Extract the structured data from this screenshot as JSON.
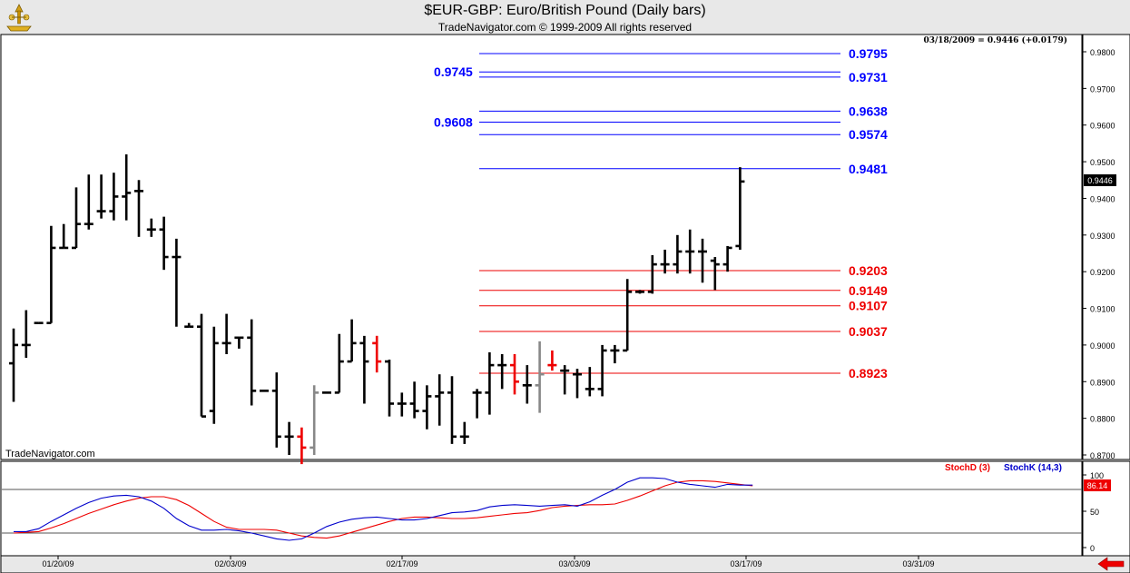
{
  "title": "$EUR-GBP:  Euro/British Pound  (Daily bars)",
  "copyright": "TradeNavigator.com © 1999-2009 All rights reserved",
  "status_line": "03/18/2009 = 0.9446 (+0.0179)",
  "watermark": "TradeNavigator.com",
  "last_price_label": "0.9446",
  "stoch_value_label": "86.14",
  "colors": {
    "up_levels": "#0000ff",
    "down_levels": "#ee0000",
    "bars": "#000000",
    "stochD": "#ee0000",
    "stochK": "#0000cc"
  },
  "chart_data": [
    {
      "type": "ohlc",
      "title": "$EUR-GBP:  Euro/British Pound  (Daily bars)",
      "ylim": [
        0.8675,
        0.9815
      ],
      "y_ticks": [
        "0.9800",
        "0.9700",
        "0.9600",
        "0.9500",
        "0.9400",
        "0.9300",
        "0.9200",
        "0.9100",
        "0.9000",
        "0.8900",
        "0.8800",
        "0.8700"
      ],
      "x_ticks": [
        "01/20/09",
        "02/03/09",
        "02/17/09",
        "03/03/09",
        "03/17/09",
        "03/31/09"
      ],
      "bars": [
        {
          "h": 0.9045,
          "l": 0.8845,
          "o": 0.895,
          "c": 0.9,
          "color": "black"
        },
        {
          "h": 0.9095,
          "l": 0.8965,
          "o": 0.9,
          "c": 0.9,
          "color": "black"
        },
        {
          "h": 0.906,
          "l": 0.906,
          "o": 0.906,
          "c": 0.906,
          "color": "black"
        },
        {
          "h": 0.9325,
          "l": 0.906,
          "o": 0.906,
          "c": 0.9265,
          "color": "black"
        },
        {
          "h": 0.933,
          "l": 0.9265,
          "o": 0.9265,
          "c": 0.9265,
          "color": "black"
        },
        {
          "h": 0.943,
          "l": 0.9265,
          "o": 0.9265,
          "c": 0.933,
          "color": "black"
        },
        {
          "h": 0.9465,
          "l": 0.9315,
          "o": 0.933,
          "c": 0.933,
          "color": "black"
        },
        {
          "h": 0.9465,
          "l": 0.9345,
          "o": 0.9365,
          "c": 0.9365,
          "color": "black"
        },
        {
          "h": 0.947,
          "l": 0.934,
          "o": 0.9365,
          "c": 0.9405,
          "color": "black"
        },
        {
          "h": 0.952,
          "l": 0.934,
          "o": 0.9405,
          "c": 0.9415,
          "color": "black"
        },
        {
          "h": 0.945,
          "l": 0.9295,
          "o": 0.942,
          "c": 0.942,
          "color": "black"
        },
        {
          "h": 0.9345,
          "l": 0.9295,
          "o": 0.9315,
          "c": 0.9315,
          "color": "black"
        },
        {
          "h": 0.935,
          "l": 0.9205,
          "o": 0.9315,
          "c": 0.924,
          "color": "black"
        },
        {
          "h": 0.929,
          "l": 0.905,
          "o": 0.924,
          "c": 0.924,
          "color": "black"
        },
        {
          "h": 0.906,
          "l": 0.905,
          "o": 0.905,
          "c": 0.905,
          "color": "black"
        },
        {
          "h": 0.9085,
          "l": 0.8805,
          "o": 0.905,
          "c": 0.8805,
          "color": "black"
        },
        {
          "h": 0.905,
          "l": 0.8785,
          "o": 0.882,
          "c": 0.9005,
          "color": "black"
        },
        {
          "h": 0.9085,
          "l": 0.8975,
          "o": 0.9005,
          "c": 0.9005,
          "color": "black"
        },
        {
          "h": 0.902,
          "l": 0.899,
          "o": 0.902,
          "c": 0.902,
          "color": "black"
        },
        {
          "h": 0.907,
          "l": 0.8835,
          "o": 0.902,
          "c": 0.8875,
          "color": "black"
        },
        {
          "h": 0.8875,
          "l": 0.8875,
          "o": 0.8875,
          "c": 0.8875,
          "color": "black"
        },
        {
          "h": 0.8925,
          "l": 0.872,
          "o": 0.8875,
          "c": 0.875,
          "color": "black"
        },
        {
          "h": 0.879,
          "l": 0.87,
          "o": 0.875,
          "c": 0.875,
          "color": "black"
        },
        {
          "h": 0.8775,
          "l": 0.8675,
          "o": 0.875,
          "c": 0.872,
          "color": "red"
        },
        {
          "h": 0.889,
          "l": 0.87,
          "o": 0.872,
          "c": 0.887,
          "color": "gray"
        },
        {
          "h": 0.887,
          "l": 0.887,
          "o": 0.887,
          "c": 0.887,
          "color": "black"
        },
        {
          "h": 0.903,
          "l": 0.887,
          "o": 0.887,
          "c": 0.8955,
          "color": "black"
        },
        {
          "h": 0.907,
          "l": 0.8955,
          "o": 0.8955,
          "c": 0.9005,
          "color": "black"
        },
        {
          "h": 0.9025,
          "l": 0.884,
          "o": 0.9005,
          "c": 0.8955,
          "color": "black"
        },
        {
          "h": 0.9025,
          "l": 0.8925,
          "o": 0.9005,
          "c": 0.8955,
          "color": "red"
        },
        {
          "h": 0.896,
          "l": 0.8805,
          "o": 0.8955,
          "c": 0.884,
          "color": "black"
        },
        {
          "h": 0.887,
          "l": 0.8805,
          "o": 0.884,
          "c": 0.884,
          "color": "black"
        },
        {
          "h": 0.89,
          "l": 0.88,
          "o": 0.884,
          "c": 0.882,
          "color": "black"
        },
        {
          "h": 0.889,
          "l": 0.877,
          "o": 0.882,
          "c": 0.886,
          "color": "black"
        },
        {
          "h": 0.892,
          "l": 0.878,
          "o": 0.886,
          "c": 0.887,
          "color": "black"
        },
        {
          "h": 0.8915,
          "l": 0.873,
          "o": 0.887,
          "c": 0.875,
          "color": "black"
        },
        {
          "h": 0.879,
          "l": 0.873,
          "o": 0.875,
          "c": 0.875,
          "color": "black"
        },
        {
          "h": 0.888,
          "l": 0.88,
          "o": 0.887,
          "c": 0.887,
          "color": "black"
        },
        {
          "h": 0.898,
          "l": 0.881,
          "o": 0.887,
          "c": 0.8945,
          "color": "black"
        },
        {
          "h": 0.8975,
          "l": 0.888,
          "o": 0.8945,
          "c": 0.8945,
          "color": "black"
        },
        {
          "h": 0.8975,
          "l": 0.8865,
          "o": 0.8945,
          "c": 0.89,
          "color": "red"
        },
        {
          "h": 0.8945,
          "l": 0.884,
          "o": 0.889,
          "c": 0.889,
          "color": "black"
        },
        {
          "h": 0.901,
          "l": 0.8815,
          "o": 0.889,
          "c": 0.892,
          "color": "gray"
        },
        {
          "h": 0.8985,
          "l": 0.893,
          "o": 0.8945,
          "c": 0.8945,
          "color": "red"
        },
        {
          "h": 0.8945,
          "l": 0.8865,
          "o": 0.893,
          "c": 0.893,
          "color": "black"
        },
        {
          "h": 0.8935,
          "l": 0.8855,
          "o": 0.892,
          "c": 0.892,
          "color": "black"
        },
        {
          "h": 0.894,
          "l": 0.886,
          "o": 0.888,
          "c": 0.888,
          "color": "black"
        },
        {
          "h": 0.9,
          "l": 0.886,
          "o": 0.888,
          "c": 0.8985,
          "color": "black"
        },
        {
          "h": 0.9,
          "l": 0.895,
          "o": 0.8985,
          "c": 0.8985,
          "color": "black"
        },
        {
          "h": 0.918,
          "l": 0.8985,
          "o": 0.8985,
          "c": 0.9145,
          "color": "black"
        },
        {
          "h": 0.915,
          "l": 0.914,
          "o": 0.9145,
          "c": 0.9145,
          "color": "black"
        },
        {
          "h": 0.9245,
          "l": 0.914,
          "o": 0.9145,
          "c": 0.922,
          "color": "black"
        },
        {
          "h": 0.926,
          "l": 0.9195,
          "o": 0.922,
          "c": 0.922,
          "color": "black"
        },
        {
          "h": 0.93,
          "l": 0.9195,
          "o": 0.922,
          "c": 0.9255,
          "color": "black"
        },
        {
          "h": 0.9315,
          "l": 0.9195,
          "o": 0.9255,
          "c": 0.9255,
          "color": "black"
        },
        {
          "h": 0.929,
          "l": 0.917,
          "o": 0.9255,
          "c": 0.9255,
          "color": "black"
        },
        {
          "h": 0.924,
          "l": 0.915,
          "o": 0.923,
          "c": 0.922,
          "color": "black"
        },
        {
          "h": 0.927,
          "l": 0.92,
          "o": 0.922,
          "c": 0.9265,
          "color": "black"
        },
        {
          "h": 0.9485,
          "l": 0.926,
          "o": 0.927,
          "c": 0.9446,
          "color": "black"
        }
      ],
      "levels_up": [
        {
          "value": 0.9795,
          "label": "0.9795",
          "side": "right"
        },
        {
          "value": 0.9745,
          "label": "0.9745",
          "side": "left"
        },
        {
          "value": 0.9731,
          "label": "0.9731",
          "side": "right"
        },
        {
          "value": 0.9638,
          "label": "0.9638",
          "side": "right"
        },
        {
          "value": 0.9608,
          "label": "0.9608",
          "side": "left"
        },
        {
          "value": 0.9574,
          "label": "0.9574",
          "side": "right"
        },
        {
          "value": 0.9481,
          "label": "0.9481",
          "side": "right"
        }
      ],
      "levels_down": [
        {
          "value": 0.9203,
          "label": "0.9203"
        },
        {
          "value": 0.9149,
          "label": "0.9149"
        },
        {
          "value": 0.9107,
          "label": "0.9107"
        },
        {
          "value": 0.9037,
          "label": "0.9037"
        },
        {
          "value": 0.8923,
          "label": "0.8923"
        }
      ],
      "last_price": 0.9446
    },
    {
      "type": "line",
      "ylim": [
        0,
        100
      ],
      "y_ticks": [
        "100",
        "50",
        "0"
      ],
      "reference_lines": [
        80,
        20
      ],
      "series": [
        {
          "name": "StochD (3)",
          "color": "#ee0000",
          "values": [
            20,
            21,
            22,
            27,
            33,
            40,
            47,
            53,
            59,
            64,
            68,
            70,
            70,
            66,
            58,
            47,
            36,
            28,
            25,
            25,
            25,
            24,
            20,
            16,
            14,
            13,
            16,
            21,
            26,
            31,
            36,
            40,
            42,
            42,
            41,
            40,
            40,
            41,
            43,
            45,
            47,
            48,
            51,
            55,
            57,
            58,
            59,
            59,
            60,
            65,
            71,
            78,
            85,
            90,
            92,
            92,
            91,
            89,
            87,
            85
          ]
        },
        {
          "name": "StochK (14,3)",
          "color": "#0000cc",
          "values": [
            22,
            22,
            26,
            36,
            45,
            54,
            62,
            68,
            71,
            72,
            70,
            64,
            54,
            40,
            30,
            24,
            24,
            25,
            23,
            20,
            16,
            12,
            10,
            12,
            20,
            29,
            35,
            39,
            41,
            42,
            40,
            38,
            38,
            40,
            44,
            48,
            49,
            51,
            56,
            58,
            59,
            58,
            57,
            58,
            59,
            57,
            63,
            72,
            80,
            90,
            96,
            96,
            95,
            90,
            87,
            85,
            83,
            87,
            86,
            86
          ]
        }
      ],
      "last_value": 86.14
    }
  ]
}
